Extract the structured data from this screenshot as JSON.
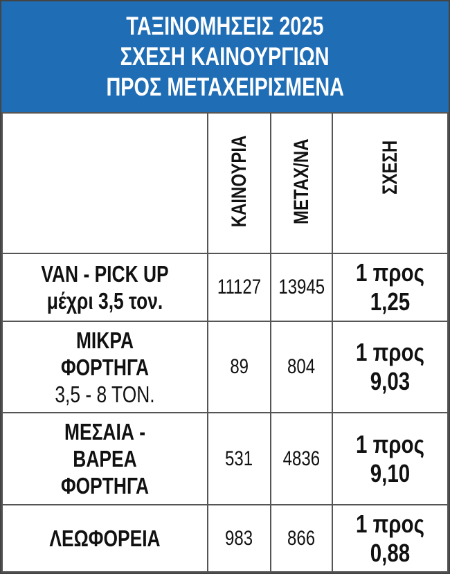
{
  "title": {
    "lines": [
      "ΤΑΞΙΝΟΜΗΣΕΙΣ 2025",
      "ΣΧΕΣΗ ΚΑΙΝΟΥΡΓΙΩΝ",
      "ΠΡΟΣ ΜΕΤΑΧΕΙΡΙΣΜΕΝΑ"
    ]
  },
  "accent_color": "#1f6db5",
  "table": {
    "headers": [
      "",
      "ΚΑΙΝΟΥΡΙΑ",
      "ΜΕΤΑΧ/ΝΑ",
      "ΣΧΕΣΗ"
    ],
    "rows": [
      {
        "category": [
          "VAN - PICK UP",
          "μέχρι 3,5 τον."
        ],
        "new": "11127",
        "used": "13945",
        "ratio": [
          "1 προς",
          "1,25"
        ]
      },
      {
        "category": [
          "ΜΙΚΡΑ",
          "ΦΟΡΤΗΓΑ",
          "3,5 - 8 ΤΟΝ."
        ],
        "new": "89",
        "used": "804",
        "ratio": [
          "1 προς",
          "9,03"
        ]
      },
      {
        "category": [
          "ΜΕΣΑΙΑ -",
          "ΒΑΡΕΑ",
          "ΦΟΡΤΗΓΑ"
        ],
        "new": "531",
        "used": "4836",
        "ratio": [
          "1 προς",
          "9,10"
        ]
      },
      {
        "category": [
          "ΛΕΩΦΟΡΕΙΑ"
        ],
        "new": "983",
        "used": "866",
        "ratio": [
          "1 προς",
          "0,88"
        ]
      }
    ]
  }
}
